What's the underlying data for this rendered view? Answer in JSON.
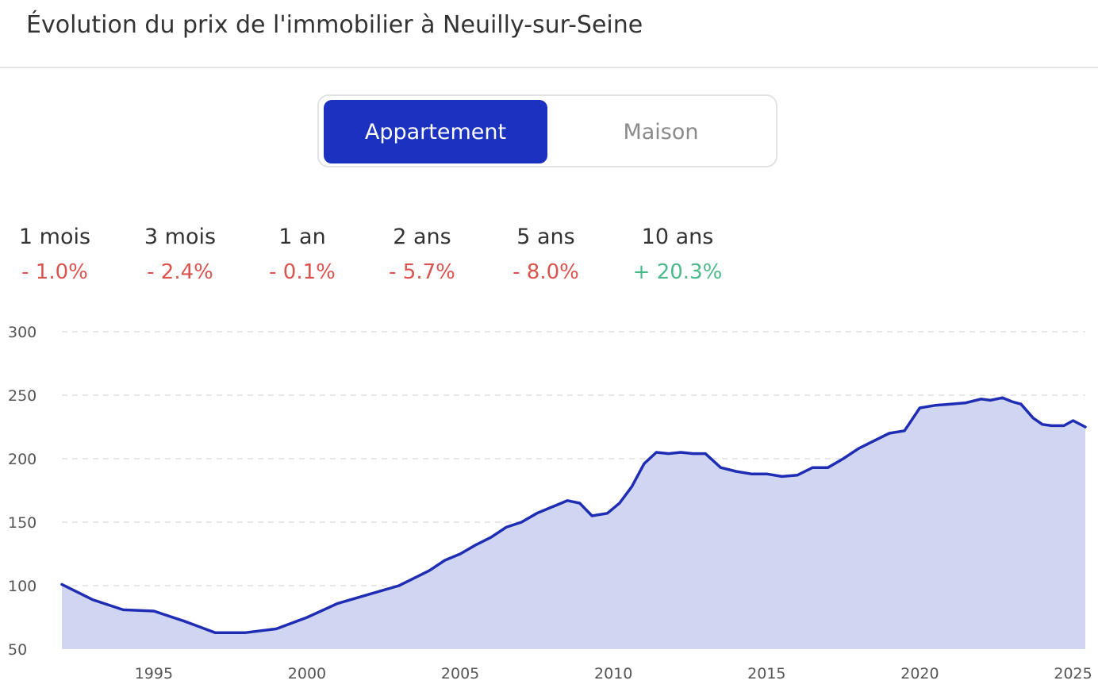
{
  "title": "Évolution du prix de l'immobilier à Neuilly-sur-Seine",
  "toggle": {
    "active_label": "Appartement",
    "inactive_label": "Maison"
  },
  "colors": {
    "accent": "#1b32c0",
    "line": "#1e2db3",
    "area": "#d0d5f1",
    "negative": "#d9534f",
    "positive": "#4cb98a",
    "grid": "#dddddd"
  },
  "stats": [
    {
      "label": "1 mois",
      "value": "- 1.0%",
      "trend": "negative"
    },
    {
      "label": "3 mois",
      "value": "- 2.4%",
      "trend": "negative"
    },
    {
      "label": "1 an",
      "value": "- 0.1%",
      "trend": "negative"
    },
    {
      "label": "2 ans",
      "value": "- 5.7%",
      "trend": "negative"
    },
    {
      "label": "5 ans",
      "value": "- 8.0%",
      "trend": "negative"
    },
    {
      "label": "10 ans",
      "value": "+ 20.3%",
      "trend": "positive"
    }
  ],
  "chart_data": {
    "type": "area",
    "title": "",
    "xlabel": "",
    "ylabel": "",
    "xlim": [
      1992,
      2025.4
    ],
    "ylim": [
      50,
      300
    ],
    "grid": true,
    "y_ticks": [
      300,
      250,
      200,
      150,
      100,
      50
    ],
    "x_ticks": [
      1995,
      2000,
      2005,
      2010,
      2015,
      2020,
      2025
    ],
    "series": [
      {
        "x": [
          1992,
          1993,
          1994,
          1995,
          1996,
          1997,
          1998,
          1999,
          2000,
          2001,
          2002,
          2003,
          2003.5,
          2004,
          2004.5,
          2005,
          2005.5,
          2006,
          2006.5,
          2007,
          2007.5,
          2008,
          2008.5,
          2008.9,
          2009.3,
          2009.8,
          2010.2,
          2010.6,
          2011,
          2011.4,
          2011.8,
          2012.2,
          2012.6,
          2013,
          2013.5,
          2014,
          2014.5,
          2015,
          2015.5,
          2016,
          2016.5,
          2017,
          2017.5,
          2018,
          2018.5,
          2019,
          2019.5,
          2020,
          2020.5,
          2021,
          2021.5,
          2022,
          2022.3,
          2022.7,
          2023,
          2023.3,
          2023.7,
          2024,
          2024.3,
          2024.7,
          2025,
          2025.4
        ],
        "y": [
          101,
          89,
          81,
          80,
          72,
          63,
          63,
          66,
          75,
          86,
          93,
          100,
          106,
          112,
          120,
          125,
          132,
          138,
          146,
          150,
          157,
          162,
          167,
          165,
          155,
          157,
          165,
          178,
          196,
          205,
          204,
          205,
          204,
          204,
          193,
          190,
          188,
          188,
          186,
          187,
          193,
          193,
          200,
          208,
          214,
          220,
          222,
          240,
          242,
          243,
          244,
          247,
          246,
          248,
          245,
          243,
          232,
          227,
          226,
          226,
          230,
          225
        ]
      }
    ]
  }
}
